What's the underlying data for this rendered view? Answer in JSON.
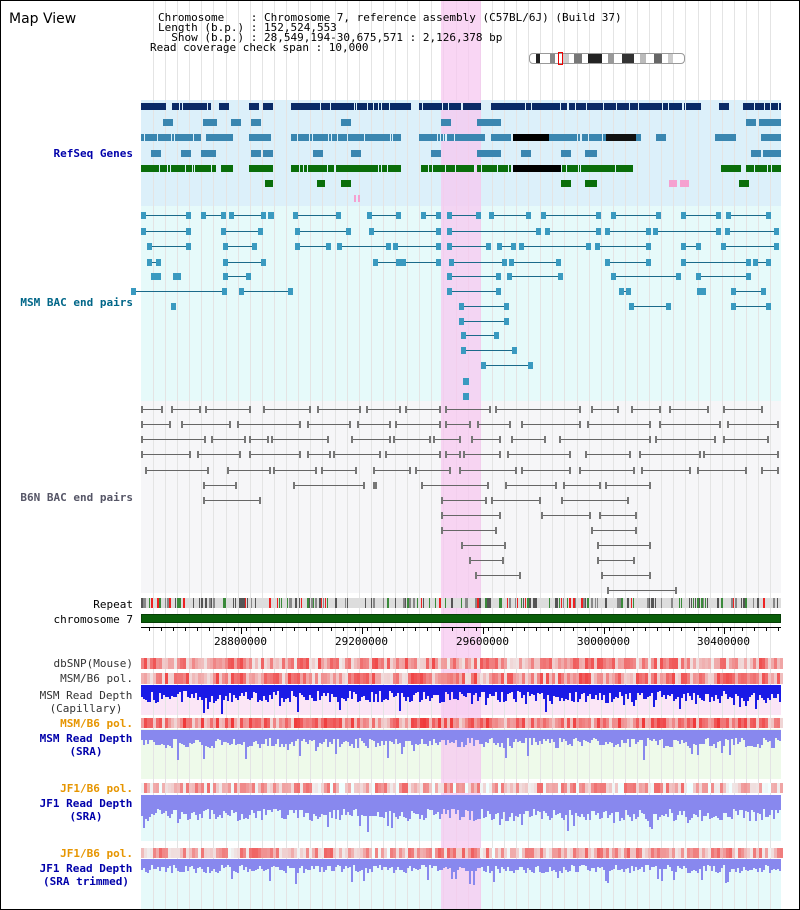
{
  "window": {
    "title": "Map View"
  },
  "info": {
    "line1": "Chromosome    : Chromosome 7, reference assembly (C57BL/6J) (Build 37)",
    "line2": "Length (b.p.) : 152,524,553",
    "line3": "  Show (b.p.) : 28,549,194-30,675,571 : 2,126,378 bp",
    "line4": "Read coverage check span : 10,000"
  },
  "tracks": {
    "refseq": "RefSeq Genes",
    "msm_bac": "MSM BAC end pairs",
    "b6n_bac": "B6N BAC end pairs",
    "repeat": "Repeat",
    "chromosome": "chromosome 7",
    "dbsnp": "dbSNP(Mouse)",
    "msm_b6_pol": "MSM/B6 pol.",
    "msm_depth_cap": "MSM Read Depth\n(Capillary)",
    "msm_b6_pol2": "MSM/B6 pol.",
    "msm_depth_sra": "MSM Read Depth\n(SRA)",
    "jf1_b6_pol": "JF1/B6 pol.",
    "jf1_depth_sra": "JF1 Read Depth\n(SRA)",
    "jf1_b6_pol2": "JF1/B6 pol.",
    "jf1_depth_trim": "JF1 Read Depth\n(SRA trimmed)"
  },
  "scale": {
    "labels": [
      "28800000",
      "29200000",
      "29600000",
      "30000000",
      "30400000"
    ]
  },
  "colors": {
    "refseq_dark": "#0a2a66",
    "refseq_mid": "#3a86b0",
    "refseq_green": "#0a6e0a",
    "highlight": "#f7d4f1",
    "chromosome": "#0a5e0a",
    "depth_blue": "#1a1ae6",
    "depth_light": "#8888ee",
    "pol_red": "#ee3333",
    "label_orange": "#e69500",
    "label_blue": "#0000aa",
    "label_teal": "#006688"
  }
}
